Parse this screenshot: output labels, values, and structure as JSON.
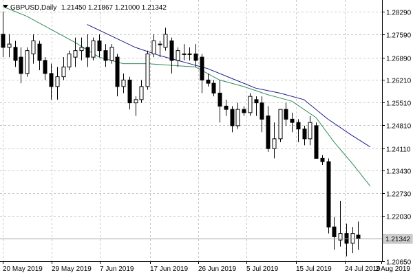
{
  "header": {
    "symbol": "GBPUSD,Daily",
    "ohlc": "1.21450 1.21867 1.21000 1.21342"
  },
  "colors": {
    "background": "#ffffff",
    "grid": "#c8c8c8",
    "candle": "#000000",
    "ma_fast": "#2e8b57",
    "ma_slow": "#1a1a8c",
    "price_line": "#a0a0a0"
  },
  "icons": {
    "dropdown": "triangle-down-icon"
  },
  "chart_data": {
    "type": "candlestick",
    "symbol": "GBPUSD",
    "timeframe": "Daily",
    "last": {
      "open": 1.2145,
      "high": 1.21867,
      "low": 1.21,
      "close": 1.21342
    },
    "current_price_label": "1.21342",
    "ylim": [
      1.2065,
      1.2865
    ],
    "y_ticks": [
      "1.28290",
      "1.27590",
      "1.26890",
      "1.26210",
      "1.25510",
      "1.24810",
      "1.24110",
      "1.23430",
      "1.22730",
      "1.22030",
      "1.21342",
      "1.20650"
    ],
    "x_ticks": [
      "20 May 2019",
      "29 May 2019",
      "7 Jun 2019",
      "17 Jun 2019",
      "26 Jun 2019",
      "5 Jul 2019",
      "15 Jul 2019",
      "24 Jul 2019",
      "2 Aug 2019"
    ],
    "grid": true,
    "candles": [
      [
        1.276,
        1.283,
        1.269,
        1.272
      ],
      [
        1.272,
        1.276,
        1.269,
        1.273
      ],
      [
        1.272,
        1.274,
        1.266,
        1.268
      ],
      [
        1.269,
        1.272,
        1.261,
        1.264
      ],
      [
        1.264,
        1.272,
        1.263,
        1.271
      ],
      [
        1.27,
        1.276,
        1.267,
        1.274
      ],
      [
        1.273,
        1.274,
        1.265,
        1.268
      ],
      [
        1.268,
        1.269,
        1.262,
        1.264
      ],
      [
        1.264,
        1.267,
        1.256,
        1.26
      ],
      [
        1.26,
        1.266,
        1.256,
        1.263
      ],
      [
        1.263,
        1.269,
        1.262,
        1.266
      ],
      [
        1.266,
        1.271,
        1.265,
        1.27
      ],
      [
        1.269,
        1.275,
        1.266,
        1.271
      ],
      [
        1.271,
        1.275,
        1.268,
        1.272
      ],
      [
        1.272,
        1.276,
        1.266,
        1.269
      ],
      [
        1.269,
        1.275,
        1.268,
        1.274
      ],
      [
        1.274,
        1.276,
        1.269,
        1.271
      ],
      [
        1.271,
        1.273,
        1.266,
        1.268
      ],
      [
        1.268,
        1.273,
        1.267,
        1.272
      ],
      [
        1.269,
        1.27,
        1.257,
        1.26
      ],
      [
        1.26,
        1.264,
        1.258,
        1.262
      ],
      [
        1.262,
        1.263,
        1.253,
        1.255
      ],
      [
        1.255,
        1.257,
        1.251,
        1.256
      ],
      [
        1.256,
        1.262,
        1.255,
        1.26
      ],
      [
        1.26,
        1.271,
        1.259,
        1.27
      ],
      [
        1.27,
        1.276,
        1.269,
        1.274
      ],
      [
        1.273,
        1.274,
        1.269,
        1.273
      ],
      [
        1.272,
        1.278,
        1.271,
        1.276
      ],
      [
        1.274,
        1.275,
        1.264,
        1.268
      ],
      [
        1.268,
        1.272,
        1.266,
        1.271
      ],
      [
        1.27,
        1.273,
        1.268,
        1.27
      ],
      [
        1.27,
        1.272,
        1.268,
        1.27
      ],
      [
        1.27,
        1.273,
        1.266,
        1.268
      ],
      [
        1.269,
        1.27,
        1.258,
        1.262
      ],
      [
        1.262,
        1.264,
        1.26,
        1.261
      ],
      [
        1.261,
        1.262,
        1.257,
        1.258
      ],
      [
        1.258,
        1.262,
        1.249,
        1.254
      ],
      [
        1.254,
        1.256,
        1.251,
        1.253
      ],
      [
        1.253,
        1.254,
        1.246,
        1.248
      ],
      [
        1.248,
        1.255,
        1.247,
        1.253
      ],
      [
        1.253,
        1.254,
        1.251,
        1.252
      ],
      [
        1.252,
        1.258,
        1.251,
        1.257
      ],
      [
        1.256,
        1.257,
        1.251,
        1.255
      ],
      [
        1.255,
        1.257,
        1.246,
        1.25
      ],
      [
        1.251,
        1.254,
        1.24,
        1.241
      ],
      [
        1.241,
        1.249,
        1.238,
        1.244
      ],
      [
        1.244,
        1.253,
        1.243,
        1.253
      ],
      [
        1.253,
        1.255,
        1.248,
        1.25
      ],
      [
        1.25,
        1.252,
        1.246,
        1.249
      ],
      [
        1.249,
        1.25,
        1.243,
        1.247
      ],
      [
        1.247,
        1.248,
        1.242,
        1.244
      ],
      [
        1.244,
        1.251,
        1.242,
        1.249
      ],
      [
        1.248,
        1.249,
        1.238,
        1.238
      ],
      [
        1.238,
        1.239,
        1.236,
        1.237
      ],
      [
        1.237,
        1.238,
        1.215,
        1.217
      ],
      [
        1.217,
        1.22,
        1.21,
        1.214
      ],
      [
        1.213,
        1.225,
        1.211,
        1.215
      ],
      [
        1.215,
        1.218,
        1.208,
        1.212
      ],
      [
        1.212,
        1.217,
        1.209,
        1.215
      ],
      [
        1.2145,
        1.21867,
        1.21,
        1.21342
      ]
    ],
    "ma_fast": [
      [
        0,
        1.2845
      ],
      [
        4,
        1.2815
      ],
      [
        8,
        1.2775
      ],
      [
        12,
        1.2735
      ],
      [
        16,
        1.269
      ],
      [
        20,
        1.267
      ],
      [
        24,
        1.267
      ],
      [
        28,
        1.2665
      ],
      [
        32,
        1.266
      ],
      [
        36,
        1.262
      ],
      [
        40,
        1.26
      ],
      [
        44,
        1.2575
      ],
      [
        48,
        1.2555
      ],
      [
        52,
        1.2505
      ],
      [
        55,
        1.243
      ],
      [
        58,
        1.2365
      ],
      [
        61,
        1.2295
      ]
    ],
    "ma_slow": [
      [
        14,
        1.279
      ],
      [
        18,
        1.2755
      ],
      [
        22,
        1.272
      ],
      [
        26,
        1.2695
      ],
      [
        30,
        1.2675
      ],
      [
        34,
        1.2655
      ],
      [
        38,
        1.2625
      ],
      [
        42,
        1.2595
      ],
      [
        46,
        1.258
      ],
      [
        50,
        1.256
      ],
      [
        54,
        1.25
      ],
      [
        58,
        1.245
      ],
      [
        61,
        1.2415
      ]
    ]
  }
}
